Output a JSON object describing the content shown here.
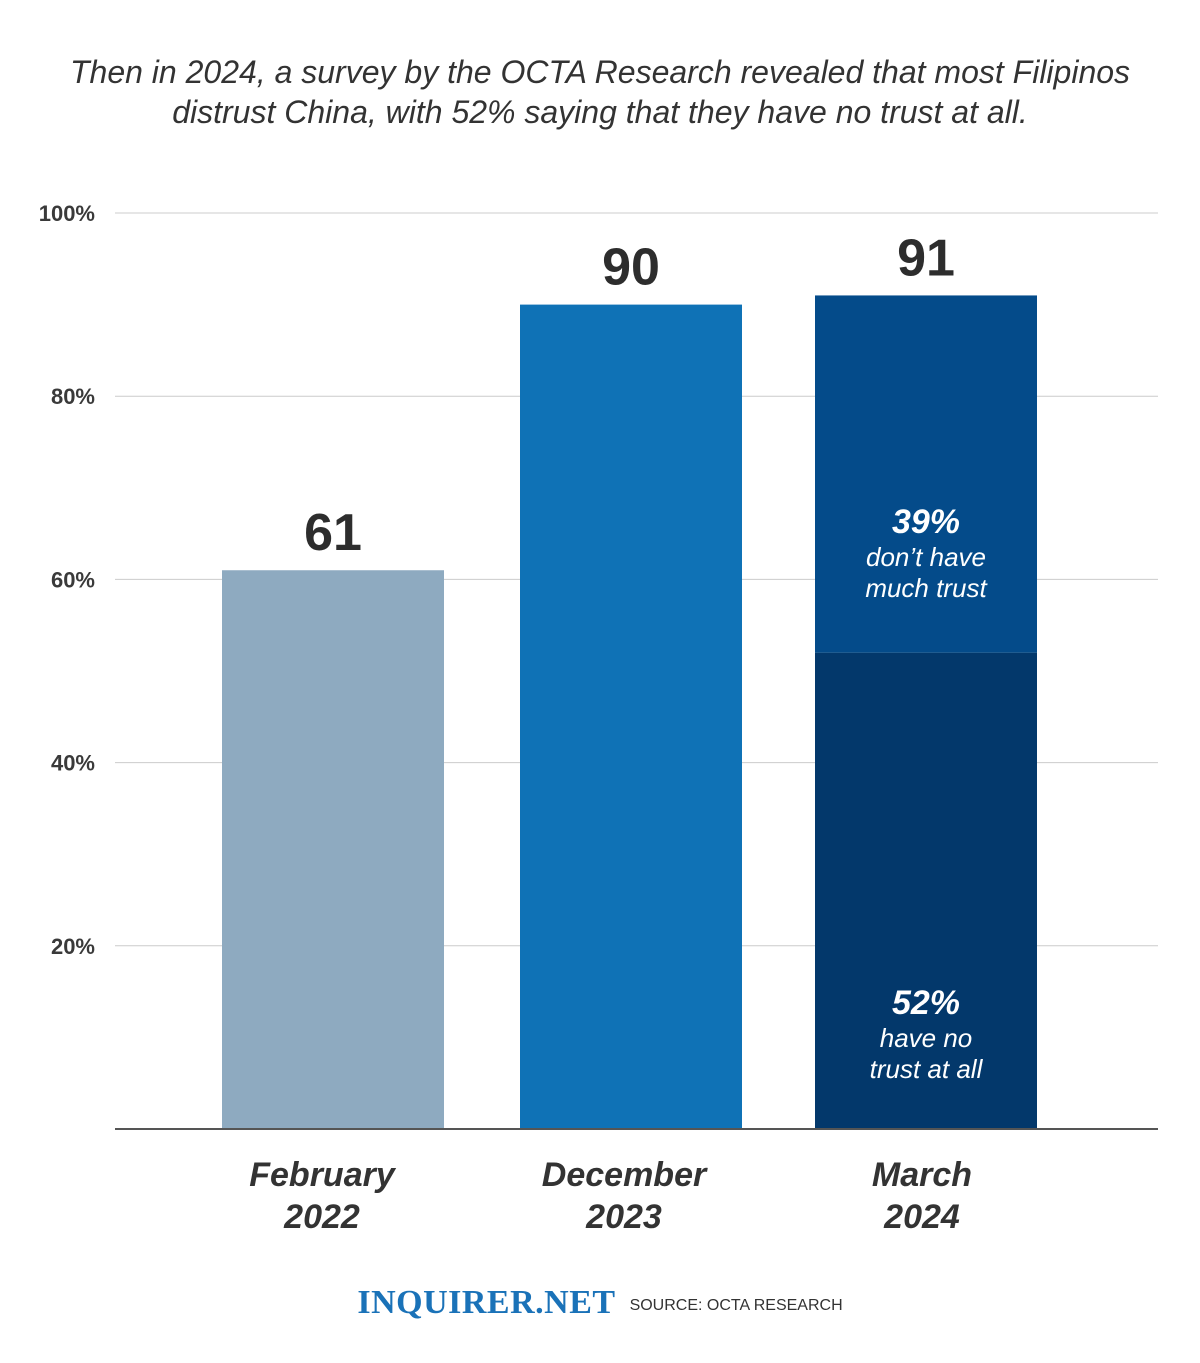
{
  "title": "Then in 2024, a survey by the OCTA Research revealed that most Filipinos distrust China, with 52% saying that they have no trust at all.",
  "brand": "INQUIRER.NET",
  "source": "SOURCE: OCTA RESEARCH",
  "colors": {
    "feb2022": "#8eaac0",
    "dec2023": "#0f72b6",
    "mar2024_not_much": "#044b8a",
    "mar2024_none": "#03386b",
    "grid": "#cccccc",
    "axis": "#555555"
  },
  "chart_data": {
    "type": "bar",
    "title": "Then in 2024, a survey by the OCTA Research revealed that most Filipinos distrust China, with 52% saying that they have no trust at all.",
    "categories": [
      [
        "February",
        "2022"
      ],
      [
        "December",
        "2023"
      ],
      [
        "March",
        "2024"
      ]
    ],
    "totals": [
      61,
      90,
      91
    ],
    "stacked_last": [
      {
        "value": 52,
        "pct_label": "52%",
        "desc": [
          "have no",
          "trust at all"
        ]
      },
      {
        "value": 39,
        "pct_label": "39%",
        "desc": [
          "don’t have",
          "much trust"
        ]
      }
    ],
    "ylim": [
      0,
      100
    ],
    "yticks": [
      {
        "value": 20,
        "label": "20%"
      },
      {
        "value": 40,
        "label": "40%"
      },
      {
        "value": 60,
        "label": "60%"
      },
      {
        "value": 80,
        "label": "80%"
      },
      {
        "value": 100,
        "label": "100%"
      }
    ],
    "grid": true,
    "xlabel": "",
    "ylabel": ""
  }
}
